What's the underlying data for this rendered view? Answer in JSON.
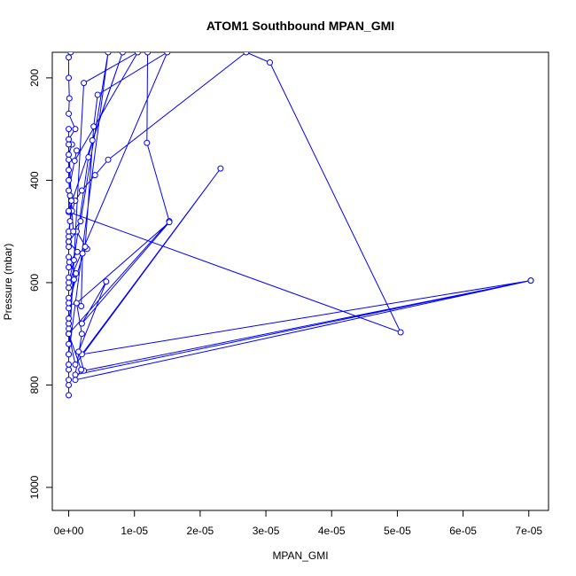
{
  "chart_data": {
    "type": "line",
    "title": "ATOM1 Southbound MPAN_GMI",
    "xlabel": "MPAN_GMI",
    "ylabel": "Pressure (mbar)",
    "xlim": [
      -2.5e-06,
      7.3e-05
    ],
    "ylim": [
      1045,
      150
    ],
    "y_reversed": true,
    "grid": false,
    "x_ticks": [
      {
        "value": 0,
        "label": "0e+00"
      },
      {
        "value": 1e-05,
        "label": "1e-05"
      },
      {
        "value": 2e-05,
        "label": "2e-05"
      },
      {
        "value": 3e-05,
        "label": "3e-05"
      },
      {
        "value": 4e-05,
        "label": "4e-05"
      },
      {
        "value": 5e-05,
        "label": "5e-05"
      },
      {
        "value": 6e-05,
        "label": "6e-05"
      },
      {
        "value": 7e-05,
        "label": "7e-05"
      }
    ],
    "y_ticks": [
      {
        "value": 200,
        "label": "200"
      },
      {
        "value": 400,
        "label": "400"
      },
      {
        "value": 600,
        "label": "600"
      },
      {
        "value": 800,
        "label": "800"
      },
      {
        "value": 1000,
        "label": "1000"
      }
    ],
    "series_color": "#0000ff",
    "series": [
      {
        "points": [
          [
            0,
            820
          ],
          [
            0,
            800
          ],
          [
            0,
            790
          ],
          [
            0,
            770
          ],
          [
            0,
            760
          ],
          [
            0,
            740
          ],
          [
            0,
            720
          ],
          [
            0,
            700
          ],
          [
            0,
            690
          ],
          [
            0,
            670
          ],
          [
            0,
            650
          ],
          [
            0,
            630
          ],
          [
            0,
            610
          ],
          [
            0,
            590
          ],
          [
            0,
            570
          ],
          [
            0,
            550
          ],
          [
            0,
            530
          ],
          [
            0,
            510
          ],
          [
            0,
            500
          ],
          [
            2e-07,
            480
          ],
          [
            5e-07,
            460
          ],
          [
            1e-06,
            440
          ],
          [
            2e-06,
            420
          ],
          [
            4e-06,
            390
          ],
          [
            6e-06,
            360
          ],
          [
            2.7e-05,
            150
          ],
          [
            3.06e-05,
            170
          ],
          [
            5.05e-05,
            697
          ],
          [
            0,
            462
          ],
          [
            2e-07,
            430
          ],
          [
            0,
            400
          ],
          [
            0,
            380
          ],
          [
            0,
            350
          ],
          [
            5e-07,
            330
          ],
          [
            0,
            320
          ],
          [
            1e-06,
            300
          ],
          [
            0,
            270
          ],
          [
            1e-07,
            240
          ],
          [
            0,
            200
          ],
          [
            0,
            160
          ],
          [
            3e-07,
            150
          ],
          [
            1.2e-05,
            150
          ],
          [
            1.19e-05,
            327
          ],
          [
            1.53e-05,
            480
          ],
          [
            0,
            700
          ],
          [
            1e-06,
            760
          ],
          [
            2.31e-05,
            377
          ],
          [
            2e-06,
            740
          ],
          [
            7.03e-05,
            596
          ],
          [
            1e-06,
            780
          ],
          [
            2e-06,
            700
          ],
          [
            1.2e-06,
            640
          ],
          [
            1.53e-05,
            482
          ],
          [
            2e-06,
            680
          ],
          [
            5.7e-06,
            598
          ],
          [
            1.5e-06,
            735
          ],
          [
            2.3e-06,
            772
          ],
          [
            7.03e-05,
            596
          ],
          [
            1e-06,
            790
          ],
          [
            1.9e-06,
            770
          ],
          [
            0,
            700
          ],
          [
            0,
            680
          ],
          [
            8e-07,
            594
          ],
          [
            1.1e-06,
            582
          ],
          [
            1e-07,
            560
          ],
          [
            1.3e-06,
            540
          ],
          [
            0,
            520
          ],
          [
            1.2e-06,
            500
          ],
          [
            2.8e-06,
            534
          ],
          [
            2.1e-06,
            543
          ],
          [
            1.9e-06,
            646
          ],
          [
            0,
            640
          ],
          [
            2.5e-06,
            530
          ],
          [
            3.8e-06,
            295
          ],
          [
            4.4e-06,
            233
          ],
          [
            1.5e-05,
            150
          ],
          [
            0,
            600
          ],
          [
            8e-07,
            556
          ],
          [
            3e-06,
            355
          ],
          [
            3.6e-06,
            322
          ],
          [
            8.2e-06,
            150
          ],
          [
            0,
            460
          ],
          [
            0,
            420
          ],
          [
            1.2e-06,
            342
          ],
          [
            9e-07,
            362
          ],
          [
            1.05e-05,
            150
          ],
          [
            2.3e-06,
            210
          ],
          [
            0,
            740
          ],
          [
            6e-06,
            150
          ],
          [
            1.8e-06,
            480
          ],
          [
            7e-07,
            500
          ],
          [
            0,
            360
          ],
          [
            0,
            300
          ],
          [
            0,
            330
          ],
          [
            4e-07,
            440
          ],
          [
            0,
            520
          ]
        ]
      }
    ]
  }
}
